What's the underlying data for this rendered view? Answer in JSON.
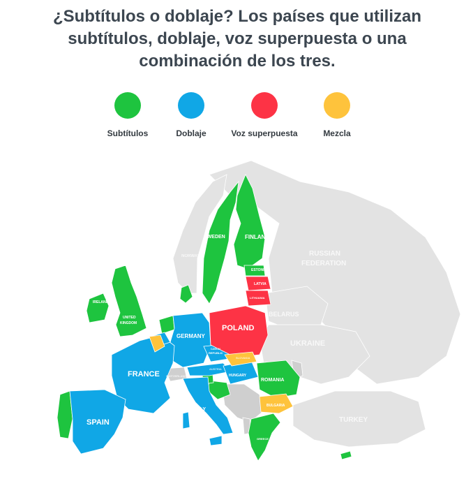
{
  "title": {
    "line1": "¿Subtítulos o doblaje? Los países que utilizan",
    "line2": "subtítulos, doblaje, voz superpuesta o una",
    "line3": "combinación de los tres."
  },
  "legend": [
    {
      "label": "Subtítulos",
      "color": "#1ec43f"
    },
    {
      "label": "Doblaje",
      "color": "#10a7e6"
    },
    {
      "label": "Voz superpuesta",
      "color": "#fd3345"
    },
    {
      "label": "Mezcla",
      "color": "#fec33c"
    }
  ],
  "colors": {
    "non_eu": "#e3e3e3",
    "non_eu_dark": "#cfcfcf",
    "sea": "#ffffff"
  },
  "map_labels": {
    "sweden": "SWEDEN",
    "finland": "FINLAND",
    "norway": "NORWAY",
    "russia_1": "RUSSIAN",
    "russia_2": "FEDERATION",
    "estonia": "ESTONIA",
    "latvia": "LATVIA",
    "lithuania": "LITHUANIA",
    "ireland": "IRELAND",
    "uk_1": "UNITED",
    "uk_2": "KINGDOM",
    "belarus": "BELARUS",
    "poland": "POLAND",
    "germany": "GERMANY",
    "czech_1": "CZECH",
    "czech_2": "REPUBLIC",
    "ukraine": "UKRAINE",
    "slovakia": "SLOVAKIA",
    "austria": "AUSTRIA",
    "france": "FRANCE",
    "switzerland": "SWITZERLAND",
    "hungary": "HUNGARY",
    "romania": "ROMANIA",
    "italy": "ITALY",
    "bulgaria": "BULGARIA",
    "spain": "SPAIN",
    "turkey": "TURKEY",
    "greece": "GREECE"
  }
}
